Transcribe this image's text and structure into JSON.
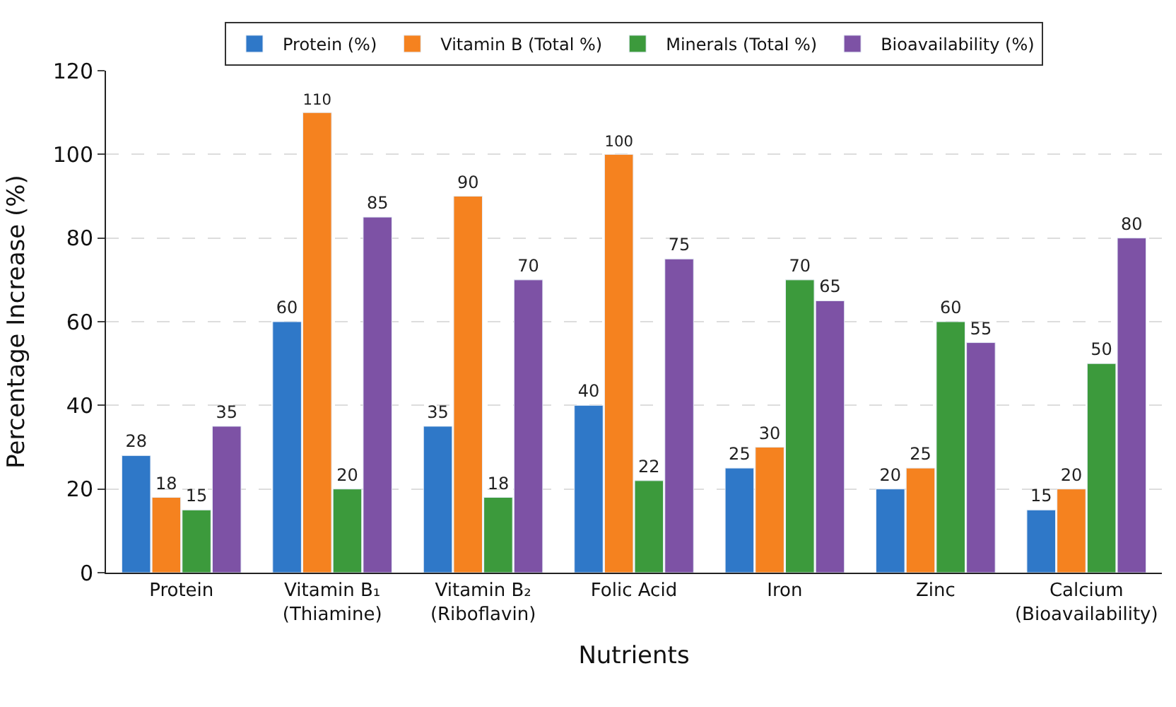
{
  "chart_data": {
    "type": "bar",
    "xlabel": "Nutrients",
    "ylabel": "Percentage Increase (%)",
    "categories": [
      "Protein",
      "Vitamin B₁\n(Thiamine)",
      "Vitamin B₂\n(Riboflavin)",
      "Folic Acid",
      "Iron",
      "Zinc",
      "Calcium\n(Bioavailability)"
    ],
    "series": [
      {
        "name": "Protein (%)",
        "color": "#2f78c8",
        "values": [
          28,
          60,
          35,
          40,
          25,
          20,
          15
        ]
      },
      {
        "name": "Vitamin B (Total %)",
        "color": "#f5821f",
        "values": [
          18,
          110,
          90,
          100,
          30,
          25,
          20
        ]
      },
      {
        "name": "Minerals (Total %)",
        "color": "#3c9a3c",
        "values": [
          15,
          20,
          18,
          22,
          70,
          60,
          50
        ]
      },
      {
        "name": "Bioavailability (%)",
        "color": "#7d52a5",
        "values": [
          35,
          85,
          70,
          75,
          65,
          55,
          80
        ]
      }
    ],
    "ylim": [
      0,
      120
    ],
    "yticks": [
      0,
      20,
      40,
      60,
      80,
      100,
      120
    ],
    "grid": "y",
    "legend": "top",
    "data_labels": true
  }
}
